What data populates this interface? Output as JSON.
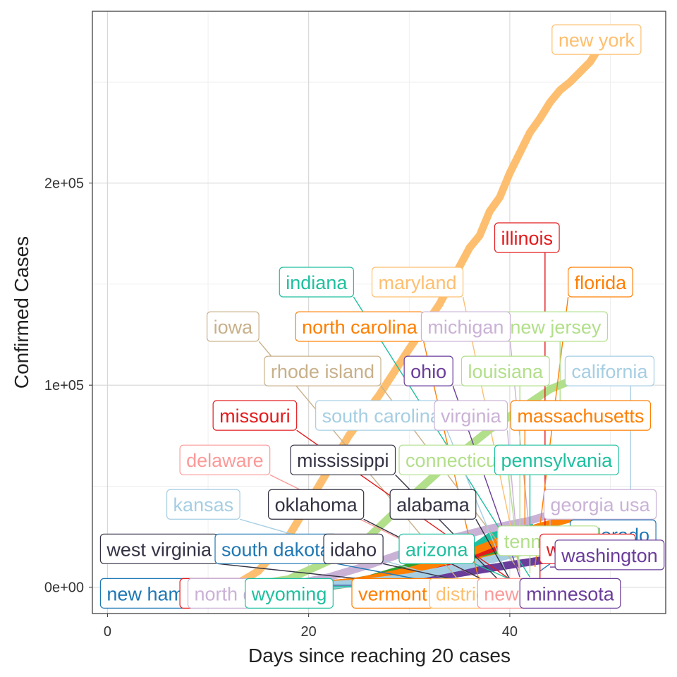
{
  "chart_data": {
    "type": "line",
    "title": "",
    "xlabel": "Days since reaching 20 cases",
    "ylabel": "Confirmed Cases",
    "xlim": [
      -1.5,
      55.5
    ],
    "ylim": [
      -13000,
      285000
    ],
    "x_ticks": [
      {
        "value": 0,
        "label": "0"
      },
      {
        "value": 20,
        "label": "20"
      },
      {
        "value": 40,
        "label": "40"
      }
    ],
    "y_ticks": [
      {
        "value": 0,
        "label": "0e+00"
      },
      {
        "value": 100000,
        "label": "1e+05"
      },
      {
        "value": 200000,
        "label": "2e+05"
      }
    ],
    "grid": true,
    "legend": "none",
    "series": [
      {
        "name": "new york",
        "color": "#fdbf6f",
        "x": [
          13,
          15,
          18,
          21,
          24,
          27,
          30,
          33,
          36,
          37,
          38,
          39,
          40,
          41,
          42,
          43,
          44,
          45,
          46,
          48,
          49,
          50
        ],
        "y": [
          2000,
          8000,
          25000,
          50000,
          75000,
          95000,
          118000,
          140000,
          168000,
          174000,
          186000,
          193000,
          205000,
          215000,
          225000,
          232000,
          240000,
          246000,
          250000,
          260000,
          268000,
          271000
        ]
      },
      {
        "name": "new jersey",
        "color": "#b2df8a",
        "x": [
          14,
          18,
          22,
          26,
          30,
          34,
          38,
          41,
          44,
          46
        ],
        "y": [
          1000,
          4000,
          13000,
          25000,
          44000,
          62000,
          78000,
          88000,
          98000,
          102000
        ]
      },
      {
        "name": "michigan",
        "color": "#cab2d6",
        "x": [
          18,
          22,
          26,
          30,
          34,
          38,
          42,
          44
        ],
        "y": [
          1000,
          5000,
          11000,
          18000,
          24000,
          29000,
          33000,
          36000
        ]
      },
      {
        "name": "california",
        "color": "#a6cee3",
        "x": [
          20,
          25,
          30,
          35,
          40,
          45,
          50
        ],
        "y": [
          500,
          2000,
          5000,
          10000,
          16000,
          22000,
          27000
        ]
      },
      {
        "name": "massachusetts",
        "color": "#ff7f00",
        "x": [
          20,
          25,
          30,
          35,
          40,
          43,
          46
        ],
        "y": [
          500,
          3000,
          8000,
          15000,
          25000,
          30000,
          34000
        ]
      },
      {
        "name": "illinois",
        "color": "#e31a1c",
        "x": [
          20,
          25,
          30,
          35,
          40,
          44
        ],
        "y": [
          500,
          3000,
          8000,
          14000,
          22000,
          30000
        ]
      },
      {
        "name": "pennsylvania",
        "color": "#1fbf9f",
        "x": [
          22,
          27,
          32,
          36,
          38,
          42
        ],
        "y": [
          500,
          4000,
          10000,
          18000,
          25000,
          30000
        ]
      },
      {
        "name": "louisiana",
        "color": "#33a02c",
        "x": [
          22,
          26,
          30,
          34,
          38,
          41
        ],
        "y": [
          500,
          4000,
          10000,
          14000,
          18000,
          20000
        ]
      },
      {
        "name": "florida",
        "color": "#fb8c00",
        "x": [
          22,
          26,
          30,
          34,
          38,
          42
        ],
        "y": [
          500,
          3000,
          7000,
          11000,
          15000,
          20000
        ]
      },
      {
        "name": "georgia usa",
        "color": "#6a3d9a",
        "x": [
          25,
          30,
          35,
          40,
          44
        ],
        "y": [
          500,
          3000,
          7000,
          11000,
          14000
        ]
      }
    ],
    "labels": [
      {
        "text": "new york",
        "color": "#fdbf6f",
        "x": 44.2,
        "y": 271000,
        "lx": 50,
        "ly": 271000,
        "anchor": "start"
      },
      {
        "text": "illinois",
        "color": "#e31a1c",
        "x": 38.5,
        "y": 173000,
        "lx": 43.5,
        "ly": 30000
      },
      {
        "text": "indiana",
        "color": "#1fbf9f",
        "x": 17.1,
        "y": 151000,
        "lx": 42,
        "ly": 5000
      },
      {
        "text": "maryland",
        "color": "#fdbf6f",
        "x": 26.3,
        "y": 151000,
        "lx": 41,
        "ly": 8000
      },
      {
        "text": "florida",
        "color": "#ff7f00",
        "x": 45.8,
        "y": 151000,
        "lx": 42.5,
        "ly": 10000
      },
      {
        "text": "iowa",
        "color": "#c8b08a",
        "x": 9.9,
        "y": 129000,
        "lx": 35,
        "ly": 3000
      },
      {
        "text": "north carolina",
        "color": "#ff7f00",
        "x": 18.7,
        "y": 129000,
        "lx": 37,
        "ly": 2000
      },
      {
        "text": "new jersey",
        "color": "#b2df8a",
        "x": 39.4,
        "y": 129000,
        "lx": 45,
        "ly": 90000
      },
      {
        "text": "michigan",
        "color": "#cab2d6",
        "x": 31.2,
        "y": 129000,
        "lx": 42,
        "ly": 25000
      },
      {
        "text": "rhode island",
        "color": "#c8b08a",
        "x": 15.6,
        "y": 107000,
        "lx": 41,
        "ly": 8000
      },
      {
        "text": "ohio",
        "color": "#6a3d9a",
        "x": 29.5,
        "y": 107000,
        "lx": 41,
        "ly": 5000
      },
      {
        "text": "louisiana",
        "color": "#b2df8a",
        "x": 35.2,
        "y": 107000,
        "lx": 41,
        "ly": 20000
      },
      {
        "text": "california",
        "color": "#a6cee3",
        "x": 45.5,
        "y": 107000,
        "lx": 52,
        "ly": 30000
      },
      {
        "text": "missouri",
        "color": "#e31a1c",
        "x": 10.5,
        "y": 85000,
        "lx": 40,
        "ly": 4000
      },
      {
        "text": "south carolina",
        "color": "#a6cee3",
        "x": 20.7,
        "y": 85000,
        "lx": 40,
        "ly": 3000
      },
      {
        "text": "virginia",
        "color": "#cab2d6",
        "x": 32.5,
        "y": 85000,
        "lx": 41,
        "ly": 6000
      },
      {
        "text": "massachusetts",
        "color": "#ff7f00",
        "x": 40.1,
        "y": 85000,
        "lx": 41.5,
        "ly": 31000
      },
      {
        "text": "delaware",
        "color": "#fb9a99",
        "x": 7.2,
        "y": 63000,
        "lx": 38,
        "ly": 2000
      },
      {
        "text": "mississippi",
        "color": "#333344",
        "x": 18.2,
        "y": 63000,
        "lx": 39,
        "ly": 3000
      },
      {
        "text": "connecticut",
        "color": "#b2df8a",
        "x": 29.0,
        "y": 63000,
        "lx": 41,
        "ly": 10000
      },
      {
        "text": "pennsylvania",
        "color": "#1fbf9f",
        "x": 38.5,
        "y": 63000,
        "lx": 42,
        "ly": 30000
      },
      {
        "text": "kansas",
        "color": "#a6cee3",
        "x": 5.9,
        "y": 41000,
        "lx": 36,
        "ly": 1000
      },
      {
        "text": "oklahoma",
        "color": "#333344",
        "x": 16.0,
        "y": 41000,
        "lx": 38,
        "ly": 2000
      },
      {
        "text": "alabama",
        "color": "#333344",
        "x": 28.1,
        "y": 41000,
        "lx": 40,
        "ly": 4000
      },
      {
        "text": "georgia usa",
        "color": "#cab2d6",
        "x": 43.4,
        "y": 41000,
        "lx": 44,
        "ly": 14000
      },
      {
        "text": "colorado",
        "color": "#1f78b4",
        "x": 46.0,
        "y": 26000,
        "lx": 43,
        "ly": 8000
      },
      {
        "text": "tennessee",
        "color": "#b2df8a",
        "x": 38.8,
        "y": 23000,
        "lx": 42,
        "ly": 7000
      },
      {
        "text": "wisconsin",
        "color": "#e31a1c",
        "x": 43.0,
        "y": 19000,
        "lx": 43,
        "ly": 3000
      },
      {
        "text": "washington",
        "color": "#6a3d9a",
        "x": 44.5,
        "y": 16000,
        "lx": 44,
        "ly": 10000
      },
      {
        "text": "west virginia",
        "color": "#333344",
        "x": -0.7,
        "y": 19000,
        "lx": 31,
        "ly": 1000
      },
      {
        "text": "south dakota",
        "color": "#1f78b4",
        "x": 10.7,
        "y": 19000,
        "lx": 34,
        "ly": 1000
      },
      {
        "text": "idaho",
        "color": "#333344",
        "x": 21.5,
        "y": 19000,
        "lx": 37,
        "ly": 1000
      },
      {
        "text": "arizona",
        "color": "#1fbf9f",
        "x": 29.0,
        "y": 19000,
        "lx": 40,
        "ly": 4000
      },
      {
        "text": "new hampshire",
        "color": "#1f78b4",
        "x": -0.7,
        "y": -3000,
        "lx": 36,
        "ly": 1000
      },
      {
        "text": "maine",
        "color": "#e31a1c",
        "x": 7.2,
        "y": -3000,
        "lx": 37,
        "ly": 500
      },
      {
        "text": "north dakota",
        "color": "#cab2d6",
        "x": 8.0,
        "y": -3000,
        "lx": 38,
        "ly": 500
      },
      {
        "text": "wyoming",
        "color": "#1fbf9f",
        "x": 13.7,
        "y": -3000,
        "lx": 36,
        "ly": 300
      },
      {
        "text": "vermont",
        "color": "#ff7f00",
        "x": 24.3,
        "y": -3000,
        "lx": 37,
        "ly": 600
      },
      {
        "text": "district of columbia",
        "color": "#fdbf6f",
        "x": 32.0,
        "y": -3000,
        "lx": 38,
        "ly": 1000
      },
      {
        "text": "new mexico",
        "color": "#fb9a99",
        "x": 36.8,
        "y": -3000,
        "lx": 37,
        "ly": 1500
      },
      {
        "text": "minnesota",
        "color": "#6a3d9a",
        "x": 41.0,
        "y": -3000,
        "lx": 40,
        "ly": 2000
      }
    ]
  }
}
